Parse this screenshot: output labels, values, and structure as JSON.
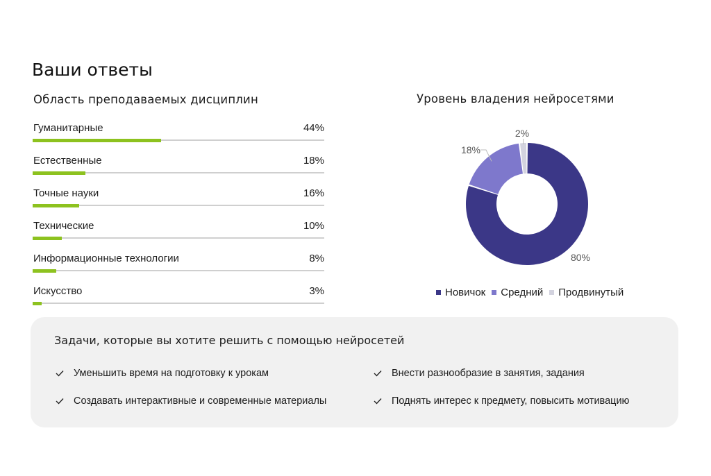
{
  "page": {
    "title": "Ваши ответы"
  },
  "colors": {
    "bar_fill": "#8dc21f",
    "bar_track": "#cfcfcf",
    "panel_bg": "#f1f1f1"
  },
  "chart_data": [
    {
      "type": "bar",
      "orientation": "horizontal",
      "title": "Область преподаваемых дисциплин",
      "categories": [
        "Гуманитарные",
        "Естественные",
        "Точные науки",
        "Технические",
        "Информационные технологии",
        "Искусство"
      ],
      "values": [
        44,
        18,
        16,
        10,
        8,
        3
      ],
      "value_labels": [
        "44%",
        "18%",
        "16%",
        "10%",
        "8%",
        "3%"
      ],
      "unit": "%",
      "xlim": [
        0,
        100
      ]
    },
    {
      "type": "pie",
      "variant": "donut",
      "title": "Уровень владения нейросетями",
      "categories": [
        "Новичок",
        "Средний",
        "Продвинутый"
      ],
      "values": [
        80,
        18,
        2
      ],
      "value_labels": [
        "80%",
        "18%",
        "2%"
      ],
      "colors": [
        "#3b3787",
        "#7e78cc",
        "#d3d3df"
      ],
      "legend": "bottom"
    }
  ],
  "tasks": {
    "title": "Задачи, которые вы хотите решить с помощью нейросетей",
    "items": [
      "Уменьшить время на подготовку к урокам",
      "Внести разнообразие в занятия, задания",
      "Создавать интерактивные и современные материалы",
      "Поднять интерес к предмету, повысить мотивацию"
    ],
    "icon": "check-icon"
  }
}
